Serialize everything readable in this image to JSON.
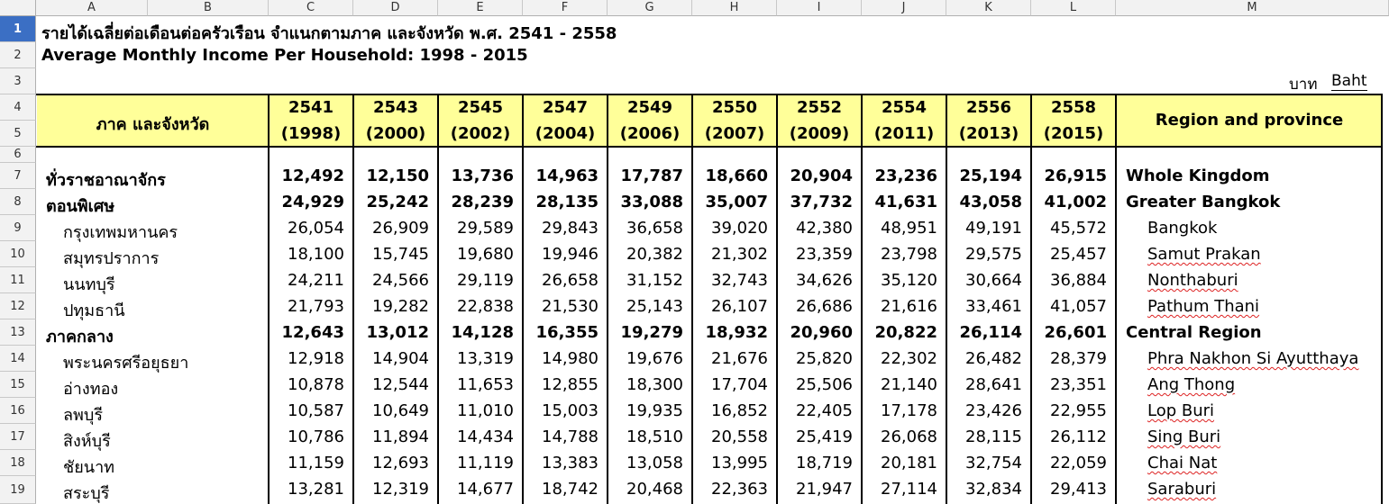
{
  "columns": [
    "A",
    "B",
    "C",
    "D",
    "E",
    "F",
    "G",
    "H",
    "I",
    "J",
    "K",
    "L",
    "M"
  ],
  "title_th": "รายได้เฉลี่ยต่อเดือนต่อครัวเรือน จำแนกตามภาค และจังหวัด พ.ศ. 2541 - 2558",
  "title_en": "Average Monthly Income Per Household: 1998 - 2015",
  "unit_th": "บาท",
  "unit_en": "Baht",
  "header": {
    "region_th": "ภาค และจังหวัด",
    "region_en": "Region and province",
    "years": [
      {
        "be": "2541",
        "ce": "(1998)"
      },
      {
        "be": "2543",
        "ce": "(2000)"
      },
      {
        "be": "2545",
        "ce": "(2002)"
      },
      {
        "be": "2547",
        "ce": "(2004)"
      },
      {
        "be": "2549",
        "ce": "(2006)"
      },
      {
        "be": "2550",
        "ce": "(2007)"
      },
      {
        "be": "2552",
        "ce": "(2009)"
      },
      {
        "be": "2554",
        "ce": "(2011)"
      },
      {
        "be": "2556",
        "ce": "(2013)"
      },
      {
        "be": "2558",
        "ce": "(2015)"
      }
    ]
  },
  "rows": [
    {
      "row": "7",
      "th": "ทั่วราชอาณาจักร",
      "en": "Whole Kingdom",
      "bold": true,
      "indent": false,
      "squiggle": false,
      "values": [
        "12,492",
        "12,150",
        "13,736",
        "14,963",
        "17,787",
        "18,660",
        "20,904",
        "23,236",
        "25,194",
        "26,915"
      ]
    },
    {
      "row": "8",
      "th": "ตอนพิเศษ",
      "en": "Greater Bangkok",
      "bold": true,
      "indent": false,
      "squiggle": false,
      "values": [
        "24,929",
        "25,242",
        "28,239",
        "28,135",
        "33,088",
        "35,007",
        "37,732",
        "41,631",
        "43,058",
        "41,002"
      ]
    },
    {
      "row": "9",
      "th": "กรุงเทพมหานคร",
      "en": "Bangkok",
      "bold": false,
      "indent": true,
      "squiggle": false,
      "values": [
        "26,054",
        "26,909",
        "29,589",
        "29,843",
        "36,658",
        "39,020",
        "42,380",
        "48,951",
        "49,191",
        "45,572"
      ]
    },
    {
      "row": "10",
      "th": "สมุทรปราการ",
      "en": "Samut Prakan",
      "bold": false,
      "indent": true,
      "squiggle": true,
      "values": [
        "18,100",
        "15,745",
        "19,680",
        "19,946",
        "20,382",
        "21,302",
        "23,359",
        "23,798",
        "29,575",
        "25,457"
      ]
    },
    {
      "row": "11",
      "th": "นนทบุรี",
      "en": "Nonthaburi",
      "bold": false,
      "indent": true,
      "squiggle": true,
      "values": [
        "24,211",
        "24,566",
        "29,119",
        "26,658",
        "31,152",
        "32,743",
        "34,626",
        "35,120",
        "30,664",
        "36,884"
      ]
    },
    {
      "row": "12",
      "th": "ปทุมธานี",
      "en": "Pathum Thani",
      "bold": false,
      "indent": true,
      "squiggle": true,
      "values": [
        "21,793",
        "19,282",
        "22,838",
        "21,530",
        "25,143",
        "26,107",
        "26,686",
        "21,616",
        "33,461",
        "41,057"
      ]
    },
    {
      "row": "13",
      "th": "ภาคกลาง",
      "en": "Central Region",
      "bold": true,
      "indent": false,
      "squiggle": false,
      "values": [
        "12,643",
        "13,012",
        "14,128",
        "16,355",
        "19,279",
        "18,932",
        "20,960",
        "20,822",
        "26,114",
        "26,601"
      ]
    },
    {
      "row": "14",
      "th": "พระนครศรีอยุธยา",
      "en": "Phra Nakhon Si Ayutthaya",
      "bold": false,
      "indent": true,
      "squiggle": true,
      "values": [
        "12,918",
        "14,904",
        "13,319",
        "14,980",
        "19,676",
        "21,676",
        "25,820",
        "22,302",
        "26,482",
        "28,379"
      ]
    },
    {
      "row": "15",
      "th": "อ่างทอง",
      "en": "Ang Thong",
      "bold": false,
      "indent": true,
      "squiggle": true,
      "values": [
        "10,878",
        "12,544",
        "11,653",
        "12,855",
        "18,300",
        "17,704",
        "25,506",
        "21,140",
        "28,641",
        "23,351"
      ]
    },
    {
      "row": "16",
      "th": "ลพบุรี",
      "en": "Lop Buri",
      "bold": false,
      "indent": true,
      "squiggle": true,
      "values": [
        "10,587",
        "10,649",
        "11,010",
        "15,003",
        "19,935",
        "16,852",
        "22,405",
        "17,178",
        "23,426",
        "22,955"
      ]
    },
    {
      "row": "17",
      "th": "สิงห์บุรี",
      "en": "Sing Buri",
      "bold": false,
      "indent": true,
      "squiggle": true,
      "values": [
        "10,786",
        "11,894",
        "14,434",
        "14,788",
        "18,510",
        "20,558",
        "25,419",
        "26,068",
        "28,115",
        "26,112"
      ]
    },
    {
      "row": "18",
      "th": "ชัยนาท",
      "en": "Chai Nat",
      "bold": false,
      "indent": true,
      "squiggle": true,
      "values": [
        "11,159",
        "12,693",
        "11,119",
        "13,383",
        "13,058",
        "13,995",
        "18,719",
        "20,181",
        "32,754",
        "22,059"
      ]
    },
    {
      "row": "19",
      "th": "สระบุรี",
      "en": "Saraburi",
      "bold": false,
      "indent": true,
      "squiggle": true,
      "values": [
        "13,281",
        "12,319",
        "14,677",
        "18,742",
        "20,468",
        "22,363",
        "21,947",
        "27,114",
        "32,834",
        "29,413"
      ]
    }
  ]
}
